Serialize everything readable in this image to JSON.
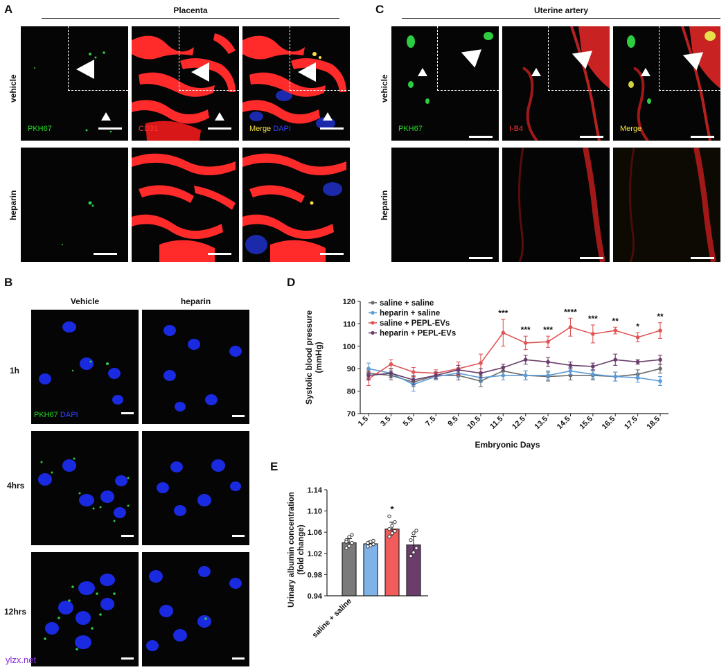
{
  "panels": {
    "A": {
      "label": "A",
      "title": "Placenta",
      "rows": [
        "vehicle",
        "heparin"
      ],
      "channels": [
        {
          "text": "PKH67",
          "color": "#22dd22"
        },
        {
          "text": "CD31",
          "color": "#ff3333"
        },
        {
          "text": "Merge",
          "color": "#f5e04a"
        },
        {
          "text": "DAPI",
          "color": "#3344ff"
        }
      ]
    },
    "B": {
      "label": "B",
      "columns": [
        "Vehicle",
        "heparin"
      ],
      "rows": [
        "1h",
        "4hrs",
        "12hrs"
      ],
      "channels": [
        {
          "text": "PKH67",
          "color": "#22dd22"
        },
        {
          "text": "DAPI",
          "color": "#3344ff"
        }
      ]
    },
    "C": {
      "label": "C",
      "title": "Uterine artery",
      "rows": [
        "vehicle",
        "heparin"
      ],
      "channels": [
        {
          "text": "PKH67",
          "color": "#22dd22"
        },
        {
          "text": "I-B4",
          "color": "#ff3333"
        },
        {
          "text": "Merge",
          "color": "#f5e04a"
        }
      ]
    },
    "D": {
      "label": "D"
    },
    "E": {
      "label": "E"
    }
  },
  "chart_data": [
    {
      "type": "line",
      "xlabel": "Embryonic Days",
      "ylabel": "Systolic blood pressure (mmHg)",
      "ylabel_lines": [
        "Systolic blood pressure",
        "(mmHg)"
      ],
      "x": [
        "1.5",
        "3.5",
        "5.5",
        "7.5",
        "9.5",
        "10.5",
        "11.5",
        "12.5",
        "13.5",
        "14.5",
        "15.5",
        "16.5",
        "17.5",
        "18.5"
      ],
      "ylim": [
        70,
        120
      ],
      "yticks": [
        70,
        80,
        90,
        100,
        110,
        120
      ],
      "legend_position": "top-left",
      "series": [
        {
          "name": "saline + saline",
          "color": "#6b6b6b",
          "values": [
            88,
            87,
            84,
            87,
            87,
            84.5,
            89,
            87,
            86.5,
            87,
            87,
            86.5,
            87.5,
            90
          ],
          "errors": [
            2,
            2,
            2,
            1.5,
            2,
            2.5,
            2,
            2,
            2,
            2,
            2,
            2,
            2,
            2
          ]
        },
        {
          "name": "heparin + saline",
          "color": "#5b9bd5",
          "values": [
            90,
            88,
            83,
            86.5,
            88,
            86,
            87,
            87,
            87,
            89,
            87.5,
            86.5,
            86,
            84.5
          ],
          "errors": [
            2.5,
            2,
            3,
            1.5,
            2,
            2,
            2,
            2,
            2,
            1.5,
            2,
            2,
            2,
            2
          ]
        },
        {
          "name": "saline + PEPL-EVs",
          "color": "#e05555",
          "values": [
            85.5,
            92,
            88.5,
            88,
            90,
            92.5,
            106,
            101.5,
            102,
            108.5,
            105.5,
            107,
            104,
            107
          ],
          "errors": [
            3,
            2,
            2,
            1.5,
            3,
            4,
            6,
            3,
            2.5,
            4,
            4,
            1.5,
            2,
            3.5
          ]
        },
        {
          "name": "heparin + PEPL-EVs",
          "color": "#6b3d6b",
          "values": [
            87,
            88,
            85,
            87,
            89.5,
            88,
            90.5,
            94,
            93,
            91.5,
            91,
            94,
            93,
            94
          ],
          "errors": [
            2,
            2,
            2,
            1.5,
            2,
            2,
            1.5,
            2,
            2,
            1.5,
            1.5,
            2.5,
            1,
            2
          ]
        }
      ],
      "significance": [
        {
          "x": "11.5",
          "text": "***"
        },
        {
          "x": "12.5",
          "text": "***"
        },
        {
          "x": "13.5",
          "text": "***"
        },
        {
          "x": "14.5",
          "text": "****"
        },
        {
          "x": "15.5",
          "text": "***"
        },
        {
          "x": "16.5",
          "text": "**"
        },
        {
          "x": "17.5",
          "text": "*"
        },
        {
          "x": "18.5",
          "text": "**"
        }
      ]
    },
    {
      "type": "bar",
      "ylabel": "Urinary albumin concentration (fold change)",
      "ylabel_lines": [
        "Urinary albumin concentration",
        "(fold change)"
      ],
      "categories": [
        "saline + saline",
        "",
        "",
        ""
      ],
      "values": [
        1.04,
        1.038,
        1.066,
        1.036
      ],
      "errors": [
        0.008,
        0.005,
        0.013,
        0.016
      ],
      "colors": [
        "#7a7a7a",
        "#7fb3e8",
        "#f25c5c",
        "#6b3d6b"
      ],
      "points": [
        [
          1.03,
          1.034,
          1.04,
          1.045,
          1.051,
          1.055,
          1.042
        ],
        [
          1.033,
          1.035,
          1.037,
          1.04,
          1.042,
          1.044
        ],
        [
          1.052,
          1.058,
          1.062,
          1.066,
          1.072,
          1.079,
          1.09
        ],
        [
          1.015,
          1.022,
          1.03,
          1.045,
          1.058,
          1.063
        ]
      ],
      "ylim": [
        0.94,
        1.14
      ],
      "yticks": [
        "0.94",
        "0.98",
        "1.02",
        "1.06",
        "1.10",
        "1.14"
      ],
      "significance": [
        {
          "category_index": 2,
          "text": "*"
        }
      ]
    }
  ],
  "watermark": "ylzx.net"
}
